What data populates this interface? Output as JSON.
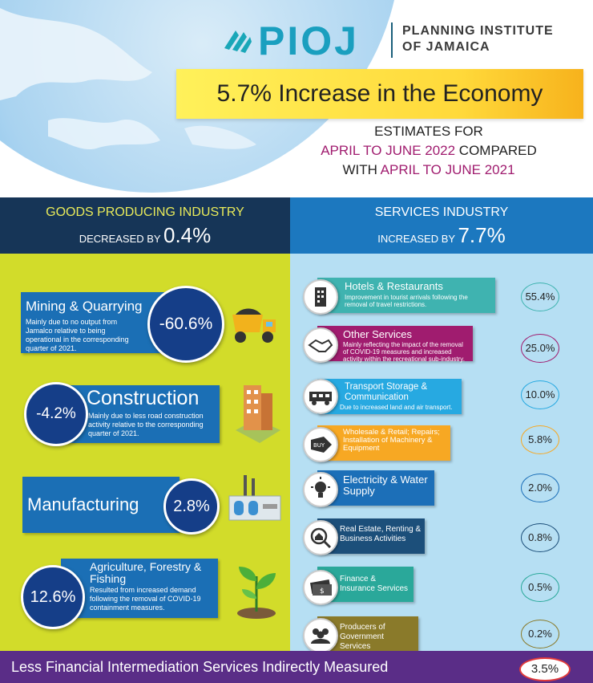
{
  "logo": {
    "word": "PIOJ",
    "line1": "PLANNING INSTITUTE",
    "line2": "OF JAMAICA"
  },
  "headline": "5.7% Increase in the Economy",
  "estimates": {
    "line1": "ESTIMATES FOR",
    "line2_highlight": "APRIL TO JUNE 2022",
    "line2_rest": " COMPARED",
    "line3_prefix": "WITH ",
    "line3_highlight": "APRIL TO JUNE 2021"
  },
  "goods": {
    "title": "GOODS PRODUCING INDUSTRY",
    "change_prefix": "DECREASED BY ",
    "change_value": "0.4%",
    "items": [
      {
        "title": "Mining & Quarrying",
        "desc": "Mainly due to no output from Jamalco relative to being operational in the corresponding quarter of 2021.",
        "value": "-60.6%",
        "icon": "dump-truck-icon"
      },
      {
        "title": "Construction",
        "desc": "Mainly due to less road construction activity relative to the corresponding quarter of 2021.",
        "value": "-4.2%",
        "icon": "building-icon"
      },
      {
        "title": "Manufacturing",
        "desc": "",
        "value": "2.8%",
        "icon": "factory-icon"
      },
      {
        "title": "Agriculture, Forestry & Fishing",
        "desc": "Resulted from increased demand following the removal of COVID-19 containment measures.",
        "value": "12.6%",
        "icon": "plant-sprout-icon"
      }
    ]
  },
  "services": {
    "title": "SERVICES INDUSTRY",
    "change_prefix": "INCREASED BY ",
    "change_value": "7.7%",
    "items": [
      {
        "title": "Hotels & Restaurants",
        "desc": "Improvement in tourist arrivals following the removal of travel restrictions.",
        "value": "55.4%",
        "color": "#3fb3b0",
        "ring": "#3fb3b0",
        "icon": "hotel-building-icon"
      },
      {
        "title": "Other Services",
        "desc": "Mainly reflecting the impact of the removal of COVID-19 measures and increased activity within the recreational sub-industry.",
        "value": "25.0%",
        "color": "#a01c6f",
        "ring": "#a01c6f",
        "icon": "handshake-icon"
      },
      {
        "title": "Transport Storage & Communication",
        "desc": "Due to increased land and air transport.",
        "value": "10.0%",
        "color": "#27a9e1",
        "ring": "#27a9e1",
        "icon": "train-icon"
      },
      {
        "title": "Wholesale & Retail; Repairs; Installation of Machinery & Equipment",
        "desc": "",
        "value": "5.8%",
        "color": "#f7a823",
        "ring": "#f7a823",
        "icon": "buy-tag-icon"
      },
      {
        "title": "Electricity & Water Supply",
        "desc": "",
        "value": "2.0%",
        "color": "#1c6fb8",
        "ring": "#1c6fb8",
        "icon": "lightbulb-icon"
      },
      {
        "title": "Real Estate, Renting & Business Activities",
        "desc": "",
        "value": "0.8%",
        "color": "#1c4f7a",
        "ring": "#1c4f7a",
        "icon": "house-search-icon"
      },
      {
        "title": "Finance & Insurance Services",
        "desc": "",
        "value": "0.5%",
        "color": "#2aa89a",
        "ring": "#2aa89a",
        "icon": "money-icon"
      },
      {
        "title": "Producers of Government Services",
        "desc": "",
        "value": "0.2%",
        "color": "#8a7a2a",
        "ring": "#8a7a2a",
        "icon": "people-group-icon"
      }
    ]
  },
  "footer": {
    "label": "Less Financial Intermediation Services Indirectly Measured",
    "value": "3.5%"
  }
}
